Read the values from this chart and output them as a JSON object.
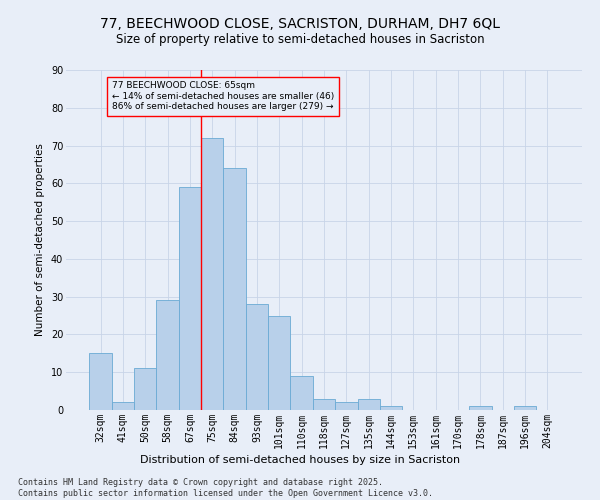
{
  "title": "77, BEECHWOOD CLOSE, SACRISTON, DURHAM, DH7 6QL",
  "subtitle": "Size of property relative to semi-detached houses in Sacriston",
  "xlabel": "Distribution of semi-detached houses by size in Sacriston",
  "ylabel": "Number of semi-detached properties",
  "categories": [
    "32sqm",
    "41sqm",
    "50sqm",
    "58sqm",
    "67sqm",
    "75sqm",
    "84sqm",
    "93sqm",
    "101sqm",
    "110sqm",
    "118sqm",
    "127sqm",
    "135sqm",
    "144sqm",
    "153sqm",
    "161sqm",
    "170sqm",
    "178sqm",
    "187sqm",
    "196sqm",
    "204sqm"
  ],
  "values": [
    15,
    2,
    11,
    29,
    59,
    72,
    64,
    28,
    25,
    9,
    3,
    2,
    3,
    1,
    0,
    0,
    0,
    1,
    0,
    1,
    0
  ],
  "bar_color": "#b8d0ea",
  "bar_edge_color": "#6aaad4",
  "bg_color": "#e8eef8",
  "grid_color": "#c8d4e8",
  "vline_x": 4.5,
  "vline_color": "red",
  "annotation_text": "77 BEECHWOOD CLOSE: 65sqm\n← 14% of semi-detached houses are smaller (46)\n86% of semi-detached houses are larger (279) →",
  "footer": "Contains HM Land Registry data © Crown copyright and database right 2025.\nContains public sector information licensed under the Open Government Licence v3.0.",
  "ylim": [
    0,
    90
  ],
  "title_fontsize": 10,
  "subtitle_fontsize": 8.5,
  "xlabel_fontsize": 8,
  "ylabel_fontsize": 7.5,
  "tick_fontsize": 7,
  "footer_fontsize": 6
}
